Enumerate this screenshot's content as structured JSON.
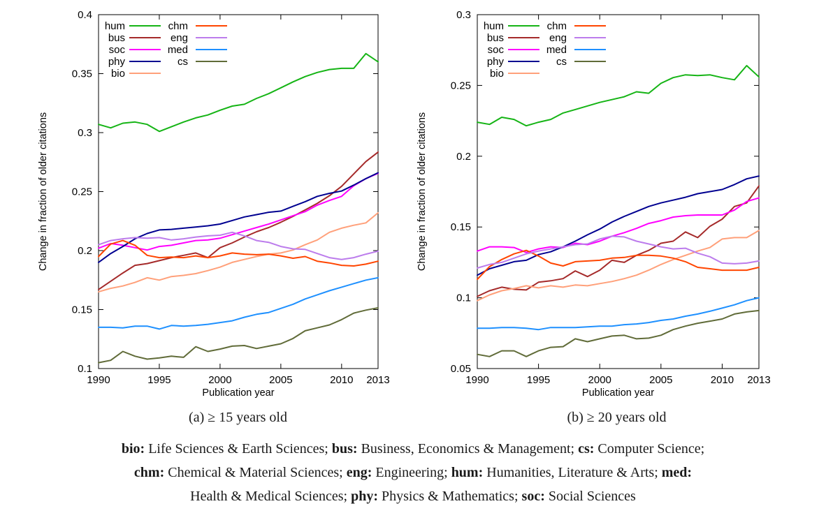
{
  "chart_data": [
    {
      "type": "line",
      "caption": "(a) ≥ 15 years old",
      "xlabel": "Publication year",
      "ylabel": "Change in fraction of older citations",
      "x": [
        1990,
        1991,
        1992,
        1993,
        1994,
        1995,
        1996,
        1997,
        1998,
        1999,
        2000,
        2001,
        2002,
        2003,
        2004,
        2005,
        2006,
        2007,
        2008,
        2009,
        2010,
        2011,
        2012,
        2013
      ],
      "xticks": [
        1990,
        1995,
        2000,
        2005,
        2010,
        2013
      ],
      "ylim": [
        0.1,
        0.4
      ],
      "yticks": [
        0.1,
        0.15,
        0.2,
        0.25,
        0.3,
        0.35,
        0.4
      ],
      "grid": false,
      "legend_position": "top-left",
      "legend_columns": [
        [
          "hum",
          "bus",
          "soc",
          "phy",
          "bio"
        ],
        [
          "chm",
          "eng",
          "med",
          "cs"
        ]
      ],
      "series": [
        {
          "name": "hum",
          "color": "#15b415",
          "values": [
            0.307,
            0.304,
            0.308,
            0.309,
            0.307,
            0.301,
            0.305,
            0.309,
            0.3125,
            0.315,
            0.319,
            0.3225,
            0.324,
            0.329,
            0.333,
            0.338,
            0.343,
            0.3475,
            0.351,
            0.3535,
            0.3545,
            0.3545,
            0.367,
            0.36
          ]
        },
        {
          "name": "bus",
          "color": "#a52a2a",
          "values": [
            0.167,
            0.174,
            0.181,
            0.1875,
            0.189,
            0.1915,
            0.194,
            0.196,
            0.198,
            0.194,
            0.2025,
            0.2065,
            0.2115,
            0.216,
            0.2195,
            0.224,
            0.229,
            0.2345,
            0.24,
            0.2465,
            0.2545,
            0.265,
            0.2755,
            0.2835
          ]
        },
        {
          "name": "soc",
          "color": "#ff00ff",
          "values": [
            0.202,
            0.206,
            0.2045,
            0.2025,
            0.2005,
            0.2035,
            0.2045,
            0.2065,
            0.2085,
            0.209,
            0.2105,
            0.2135,
            0.2165,
            0.2195,
            0.2225,
            0.226,
            0.2295,
            0.233,
            0.2385,
            0.2425,
            0.246,
            0.255,
            0.261,
            0.2655
          ]
        },
        {
          "name": "phy",
          "color": "#000090",
          "values": [
            0.19,
            0.1975,
            0.2035,
            0.21,
            0.2145,
            0.2175,
            0.218,
            0.219,
            0.22,
            0.221,
            0.2225,
            0.2255,
            0.2285,
            0.2305,
            0.2325,
            0.2335,
            0.2375,
            0.2415,
            0.246,
            0.2485,
            0.2505,
            0.2555,
            0.261,
            0.266
          ]
        },
        {
          "name": "bio",
          "color": "#ffa07a",
          "values": [
            0.165,
            0.168,
            0.17,
            0.173,
            0.177,
            0.175,
            0.178,
            0.179,
            0.1805,
            0.183,
            0.186,
            0.19,
            0.1925,
            0.195,
            0.197,
            0.198,
            0.2005,
            0.205,
            0.209,
            0.2155,
            0.219,
            0.2215,
            0.2235,
            0.232
          ]
        },
        {
          "name": "chm",
          "color": "#ff4500",
          "values": [
            0.195,
            0.2055,
            0.2085,
            0.2045,
            0.196,
            0.194,
            0.1945,
            0.194,
            0.1955,
            0.194,
            0.1955,
            0.198,
            0.197,
            0.1965,
            0.197,
            0.1955,
            0.1935,
            0.195,
            0.191,
            0.1895,
            0.1875,
            0.187,
            0.1885,
            0.191
          ]
        },
        {
          "name": "eng",
          "color": "#bc7cec",
          "values": [
            0.205,
            0.2085,
            0.21,
            0.211,
            0.2105,
            0.211,
            0.209,
            0.21,
            0.2115,
            0.2125,
            0.213,
            0.2155,
            0.2125,
            0.2085,
            0.207,
            0.2035,
            0.2015,
            0.201,
            0.1975,
            0.194,
            0.1925,
            0.194,
            0.197,
            0.1995
          ]
        },
        {
          "name": "med",
          "color": "#1e90ff",
          "values": [
            0.135,
            0.135,
            0.1345,
            0.136,
            0.136,
            0.1335,
            0.1365,
            0.136,
            0.1365,
            0.1375,
            0.139,
            0.1405,
            0.1435,
            0.146,
            0.1475,
            0.151,
            0.1545,
            0.159,
            0.1625,
            0.166,
            0.169,
            0.172,
            0.175,
            0.177
          ]
        },
        {
          "name": "cs",
          "color": "#606b38",
          "values": [
            0.105,
            0.107,
            0.1145,
            0.1105,
            0.108,
            0.109,
            0.1105,
            0.1095,
            0.1185,
            0.1145,
            0.1165,
            0.119,
            0.1195,
            0.117,
            0.119,
            0.121,
            0.1255,
            0.132,
            0.1345,
            0.137,
            0.1415,
            0.147,
            0.1495,
            0.1515
          ]
        }
      ]
    },
    {
      "type": "line",
      "caption": "(b) ≥ 20 years old",
      "xlabel": "Publication year",
      "ylabel": "Change in fraction of older citations",
      "x": [
        1990,
        1991,
        1992,
        1993,
        1994,
        1995,
        1996,
        1997,
        1998,
        1999,
        2000,
        2001,
        2002,
        2003,
        2004,
        2005,
        2006,
        2007,
        2008,
        2009,
        2010,
        2011,
        2012,
        2013
      ],
      "xticks": [
        1990,
        1995,
        2000,
        2005,
        2010,
        2013
      ],
      "ylim": [
        0.05,
        0.3
      ],
      "yticks": [
        0.05,
        0.1,
        0.15,
        0.2,
        0.25,
        0.3
      ],
      "grid": false,
      "legend_position": "top-left",
      "legend_columns": [
        [
          "hum",
          "bus",
          "soc",
          "phy",
          "bio"
        ],
        [
          "chm",
          "eng",
          "med",
          "cs"
        ]
      ],
      "series": [
        {
          "name": "hum",
          "color": "#15b415",
          "values": [
            0.224,
            0.2225,
            0.2275,
            0.226,
            0.2215,
            0.224,
            0.226,
            0.2305,
            0.233,
            0.2355,
            0.238,
            0.24,
            0.242,
            0.2455,
            0.2445,
            0.2515,
            0.2555,
            0.2575,
            0.257,
            0.2575,
            0.2555,
            0.254,
            0.264,
            0.256
          ]
        },
        {
          "name": "bus",
          "color": "#a52a2a",
          "values": [
            0.101,
            0.105,
            0.1075,
            0.106,
            0.1055,
            0.111,
            0.112,
            0.1135,
            0.119,
            0.115,
            0.1195,
            0.1265,
            0.125,
            0.13,
            0.1335,
            0.1385,
            0.14,
            0.1465,
            0.1425,
            0.1505,
            0.1555,
            0.1645,
            0.167,
            0.179
          ]
        },
        {
          "name": "soc",
          "color": "#ff00ff",
          "values": [
            0.133,
            0.136,
            0.136,
            0.1355,
            0.132,
            0.1345,
            0.136,
            0.1355,
            0.1385,
            0.1375,
            0.14,
            0.1435,
            0.146,
            0.149,
            0.1525,
            0.1545,
            0.157,
            0.158,
            0.1585,
            0.1585,
            0.1585,
            0.162,
            0.168,
            0.1705
          ]
        },
        {
          "name": "phy",
          "color": "#000090",
          "values": [
            0.116,
            0.1205,
            0.123,
            0.1255,
            0.1265,
            0.1305,
            0.1325,
            0.136,
            0.14,
            0.1445,
            0.1485,
            0.1535,
            0.1575,
            0.161,
            0.1645,
            0.167,
            0.169,
            0.171,
            0.1735,
            0.175,
            0.1765,
            0.18,
            0.184,
            0.186
          ]
        },
        {
          "name": "bio",
          "color": "#ffa07a",
          "values": [
            0.098,
            0.102,
            0.105,
            0.1065,
            0.1085,
            0.107,
            0.1085,
            0.1075,
            0.109,
            0.1085,
            0.11,
            0.1115,
            0.1135,
            0.116,
            0.1195,
            0.1235,
            0.127,
            0.13,
            0.133,
            0.1355,
            0.1415,
            0.1425,
            0.1425,
            0.1475
          ]
        },
        {
          "name": "chm",
          "color": "#ff4500",
          "values": [
            0.113,
            0.122,
            0.127,
            0.131,
            0.1335,
            0.1295,
            0.1245,
            0.1225,
            0.1255,
            0.126,
            0.1265,
            0.128,
            0.1285,
            0.13,
            0.13,
            0.1295,
            0.128,
            0.1255,
            0.1215,
            0.1205,
            0.1195,
            0.1195,
            0.1195,
            0.1215
          ]
        },
        {
          "name": "eng",
          "color": "#bc7cec",
          "values": [
            0.121,
            0.1235,
            0.125,
            0.128,
            0.131,
            0.133,
            0.1345,
            0.136,
            0.1375,
            0.138,
            0.1415,
            0.1435,
            0.143,
            0.14,
            0.138,
            0.136,
            0.1345,
            0.135,
            0.1315,
            0.129,
            0.1245,
            0.124,
            0.1245,
            0.126
          ]
        },
        {
          "name": "med",
          "color": "#1e90ff",
          "values": [
            0.0785,
            0.0785,
            0.079,
            0.079,
            0.0785,
            0.0775,
            0.079,
            0.079,
            0.079,
            0.0795,
            0.08,
            0.08,
            0.081,
            0.0815,
            0.0825,
            0.084,
            0.085,
            0.087,
            0.0885,
            0.0905,
            0.0927,
            0.095,
            0.098,
            0.1
          ]
        },
        {
          "name": "cs",
          "color": "#606b38",
          "values": [
            0.06,
            0.0585,
            0.0625,
            0.0625,
            0.0585,
            0.0625,
            0.065,
            0.0655,
            0.071,
            0.069,
            0.071,
            0.073,
            0.0735,
            0.071,
            0.0715,
            0.0735,
            0.0775,
            0.08,
            0.082,
            0.0835,
            0.085,
            0.0885,
            0.09,
            0.091
          ]
        }
      ]
    }
  ],
  "footer": {
    "lines": [
      [
        {
          "b": "bio:"
        },
        {
          "t": " Life Sciences & Earth Sciences; "
        },
        {
          "b": "bus:"
        },
        {
          "t": " Business, Economics & Management; "
        },
        {
          "b": "cs:"
        },
        {
          "t": " Computer Science;"
        }
      ],
      [
        {
          "b": "chm:"
        },
        {
          "t": " Chemical & Material Sciences; "
        },
        {
          "b": "eng:"
        },
        {
          "t": " Engineering; "
        },
        {
          "b": "hum:"
        },
        {
          "t": " Humanities, Literature & Arts; "
        },
        {
          "b": "med:"
        }
      ],
      [
        {
          "t": "Health & Medical Sciences; "
        },
        {
          "b": "phy:"
        },
        {
          "t": " Physics & Mathematics; "
        },
        {
          "b": "soc:"
        },
        {
          "t": " Social Sciences"
        }
      ]
    ]
  }
}
